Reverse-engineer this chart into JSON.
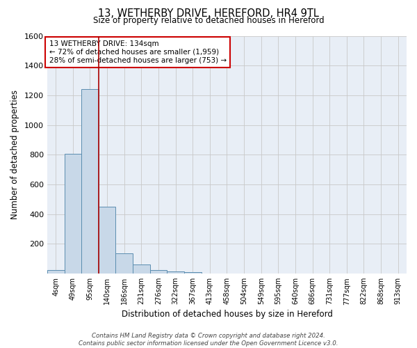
{
  "title": "13, WETHERBY DRIVE, HEREFORD, HR4 9TL",
  "subtitle": "Size of property relative to detached houses in Hereford",
  "xlabel": "Distribution of detached houses by size in Hereford",
  "ylabel": "Number of detached properties",
  "footer_line1": "Contains HM Land Registry data © Crown copyright and database right 2024.",
  "footer_line2": "Contains public sector information licensed under the Open Government Licence v3.0.",
  "bin_labels": [
    "4sqm",
    "49sqm",
    "95sqm",
    "140sqm",
    "186sqm",
    "231sqm",
    "276sqm",
    "322sqm",
    "367sqm",
    "413sqm",
    "458sqm",
    "504sqm",
    "549sqm",
    "595sqm",
    "640sqm",
    "686sqm",
    "731sqm",
    "777sqm",
    "822sqm",
    "868sqm",
    "913sqm"
  ],
  "bar_heights": [
    25,
    805,
    1240,
    450,
    135,
    60,
    25,
    15,
    10,
    0,
    0,
    0,
    0,
    0,
    0,
    0,
    0,
    0,
    0,
    0,
    0
  ],
  "bar_color": "#c8d8e8",
  "bar_edge_color": "#5b8db0",
  "grid_color": "#c8c8c8",
  "background_color": "#e8eef6",
  "property_line_color": "#aa0000",
  "annotation_text": "13 WETHERBY DRIVE: 134sqm\n← 72% of detached houses are smaller (1,959)\n28% of semi-detached houses are larger (753) →",
  "annotation_box_facecolor": "#ffffff",
  "annotation_box_edgecolor": "#cc0000",
  "ylim": [
    0,
    1600
  ],
  "yticks": [
    0,
    200,
    400,
    600,
    800,
    1000,
    1200,
    1400,
    1600
  ],
  "property_line_xdata": 2.5
}
